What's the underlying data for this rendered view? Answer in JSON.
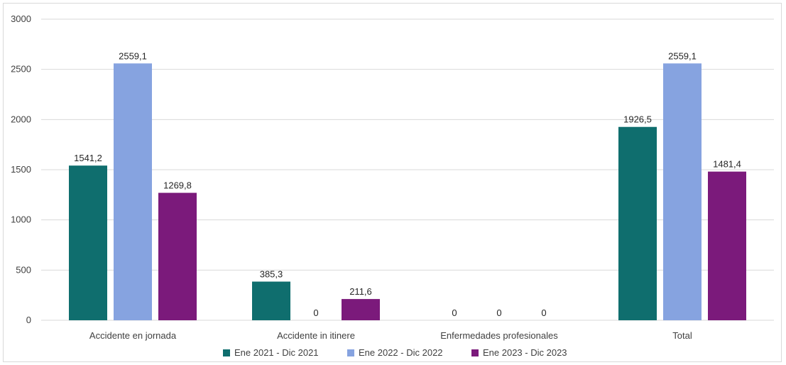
{
  "chart_data": {
    "type": "bar",
    "categories": [
      "Accidente en jornada",
      "Accidente in itinere",
      "Enfermedades profesionales",
      "Total"
    ],
    "series": [
      {
        "name": "Ene 2021 - Dic 2021",
        "color": "#0f6e6e",
        "values": [
          1541.2,
          385.3,
          0,
          1926.5
        ],
        "labels": [
          "1541,2",
          "385,3",
          "0",
          "1926,5"
        ]
      },
      {
        "name": "Ene 2022 - Dic 2022",
        "color": "#86a3e0",
        "values": [
          2559.1,
          0,
          0,
          2559.1
        ],
        "labels": [
          "2559,1",
          "0",
          "0",
          "2559,1"
        ]
      },
      {
        "name": "Ene 2023 - Dic 2023",
        "color": "#7b1a7b",
        "values": [
          1269.8,
          211.6,
          0,
          1481.4
        ],
        "labels": [
          "1269,8",
          "211,6",
          "0",
          "1481,4"
        ]
      }
    ],
    "ylim": [
      0,
      3000
    ],
    "yticks": [
      0,
      500,
      1000,
      1500,
      2000,
      2500,
      3000
    ],
    "grid": true,
    "legend": "bottom",
    "title": "",
    "xlabel": "",
    "ylabel": ""
  }
}
